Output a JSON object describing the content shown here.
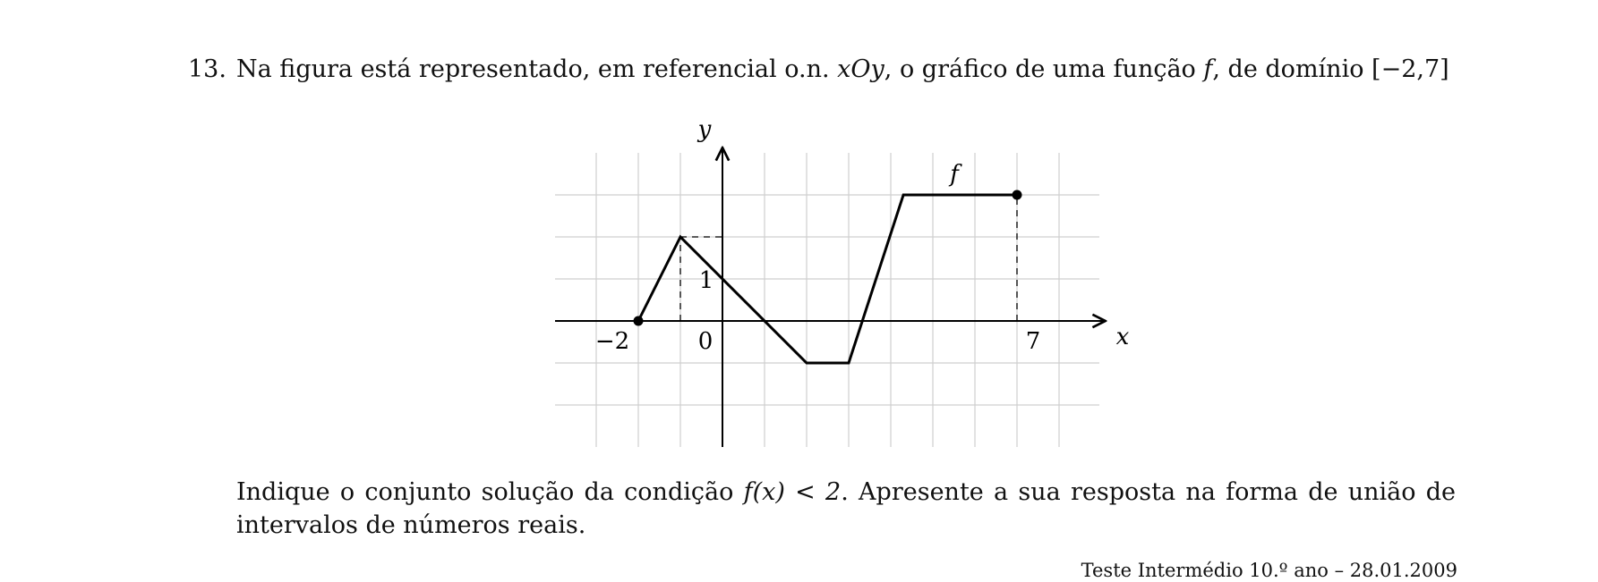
{
  "question": {
    "number": "13.",
    "text_before": "Na figura está representado, em referencial o.n. ",
    "frame": "xOy",
    "text_middle": ", o gráfico de uma função ",
    "func": "f",
    "text_after": ", de domínio [−2,7]"
  },
  "chart_data": {
    "type": "line",
    "function_label": "f",
    "xlabel": "x",
    "ylabel": "y",
    "xlim": [
      -4,
      9
    ],
    "ylim": [
      -3,
      4
    ],
    "grid": true,
    "tick_labels": [
      {
        "text": "−2",
        "axis": "x",
        "value": -2
      },
      {
        "text": "0",
        "axis": "origin",
        "value": 0
      },
      {
        "text": "1",
        "axis": "y",
        "value": 1
      },
      {
        "text": "7",
        "axis": "x",
        "value": 7
      }
    ],
    "series": [
      {
        "x": [
          -2,
          -1,
          2,
          3,
          4.3,
          7
        ],
        "y": [
          0,
          2,
          -1,
          -1,
          3,
          3
        ]
      }
    ],
    "closed_endpoints": [
      {
        "x": -2,
        "y": 0
      },
      {
        "x": 7,
        "y": 3
      }
    ],
    "guide_lines": [
      {
        "from": {
          "x": -1,
          "y": 0
        },
        "to": {
          "x": -1,
          "y": 2
        }
      },
      {
        "from": {
          "x": -1,
          "y": 2
        },
        "to": {
          "x": 0,
          "y": 2
        }
      },
      {
        "from": {
          "x": 7,
          "y": 0
        },
        "to": {
          "x": 7,
          "y": 3
        }
      }
    ]
  },
  "instruction": {
    "line1_before": "Indique o conjunto solução da condição ",
    "condition": "f(x) < 2",
    "line1_after": ". Apresente a sua resposta na forma de união de",
    "line2": "intervalos de números reais."
  },
  "footer": "Teste Intermédio 10.º ano – 28.01.2009"
}
